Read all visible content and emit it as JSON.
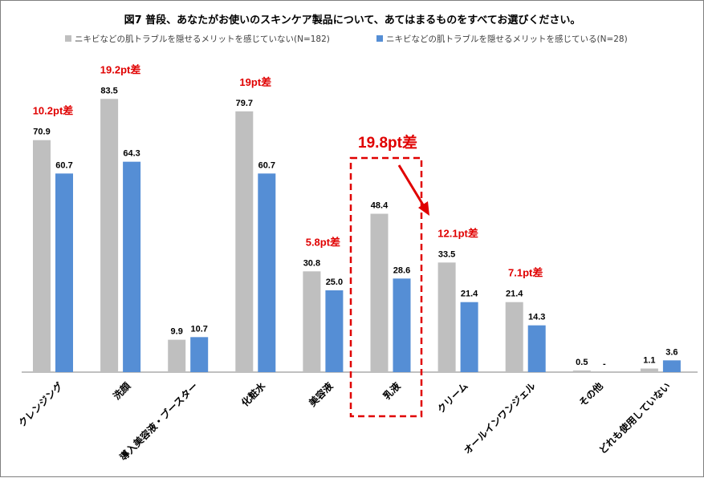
{
  "chart_data": {
    "type": "bar",
    "title": "図7  普段、あなたがお使いのスキンケア製品について、あてはまるものをすべてお選びください。",
    "categories": [
      "クレンジング",
      "洗顔",
      "導入美容液・ブースター",
      "化粧水",
      "美容液",
      "乳液",
      "クリーム",
      "オールインワンジェル",
      "その他",
      "どれも使用していない"
    ],
    "series": [
      {
        "name": "ニキビなどの肌トラブルを隠せるメリットを感じていない(N=182)",
        "color": "#bfbfbf",
        "values": [
          70.9,
          83.5,
          9.9,
          79.7,
          30.8,
          48.4,
          33.5,
          21.4,
          0.5,
          1.1
        ],
        "labels": [
          "70.9",
          "83.5",
          "9.9",
          "79.7",
          "30.8",
          "48.4",
          "33.5",
          "21.4",
          "0.5",
          "1.1"
        ]
      },
      {
        "name": "ニキビなどの肌トラブルを隠せるメリットを感じている(N=28)",
        "color": "#558ed5",
        "values": [
          60.7,
          64.3,
          10.7,
          60.7,
          25.0,
          28.6,
          21.4,
          14.3,
          0,
          3.6
        ],
        "labels": [
          "60.7",
          "64.3",
          "10.7",
          "60.7",
          "25.0",
          "28.6",
          "21.4",
          "14.3",
          "-",
          "3.6"
        ]
      }
    ],
    "ylim": [
      0,
      100
    ],
    "grid": false,
    "legend_position": "top",
    "annotations": [
      {
        "category": "クレンジング",
        "text": "10.2pt差"
      },
      {
        "category": "洗顔",
        "text": "19.2pt差"
      },
      {
        "category": "化粧水",
        "text": "19pt差"
      },
      {
        "category": "美容液",
        "text": "5.8pt差"
      },
      {
        "category": "乳液",
        "text": "19.8pt差",
        "highlight": true
      },
      {
        "category": "クリーム",
        "text": "12.1pt差"
      },
      {
        "category": "オールインワンジェル",
        "text": "7.1pt差"
      }
    ],
    "annotation_color": "#e00000"
  }
}
